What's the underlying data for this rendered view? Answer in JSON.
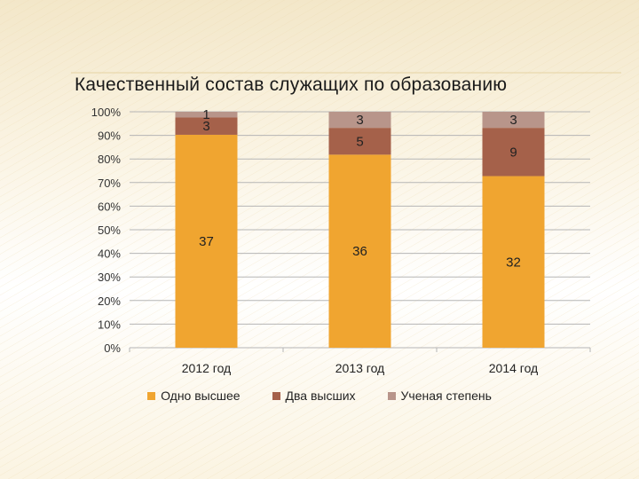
{
  "chart_data": {
    "type": "bar",
    "stacked": true,
    "normalized_100_percent": true,
    "title": "Качественный состав служащих по образованию",
    "categories": [
      "2012 год",
      "2013 год",
      "2014 год"
    ],
    "series": [
      {
        "name": "Одно высшее",
        "values": [
          37,
          36,
          32
        ],
        "color": "#f0a530"
      },
      {
        "name": "Два высших",
        "values": [
          3,
          5,
          9
        ],
        "color": "#a5614a"
      },
      {
        "name": "Ученая степень",
        "values": [
          1,
          3,
          3
        ],
        "color": "#b8958a"
      }
    ],
    "yticks": [
      "0%",
      "10%",
      "20%",
      "30%",
      "40%",
      "50%",
      "60%",
      "70%",
      "80%",
      "90%",
      "100%"
    ],
    "ylim": [
      0,
      100
    ],
    "grid": true,
    "legend_position": "bottom"
  }
}
